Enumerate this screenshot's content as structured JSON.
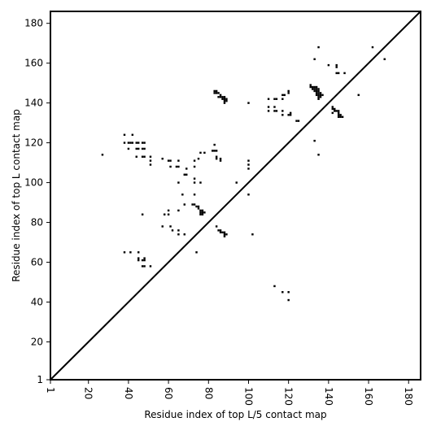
{
  "chart_data": {
    "type": "scatter",
    "title": "",
    "xlabel": "Residue index of top L/5 contact map",
    "ylabel": "Residue index of top L contact map",
    "xlim": [
      1,
      186
    ],
    "ylim": [
      1,
      186
    ],
    "xticks": [
      1,
      20,
      40,
      60,
      80,
      100,
      120,
      140,
      160,
      180
    ],
    "yticks": [
      1,
      20,
      40,
      60,
      80,
      100,
      120,
      140,
      160,
      180
    ],
    "xtick_labels": [
      "1",
      "20",
      "40",
      "60",
      "80",
      "100",
      "120",
      "140",
      "160",
      "180"
    ],
    "ytick_labels": [
      "1",
      "20",
      "40",
      "60",
      "80",
      "100",
      "120",
      "140",
      "160",
      "180"
    ],
    "x_tick_rotation": -90,
    "grid": false,
    "legend": "none",
    "diagonal": [
      [
        1,
        1
      ],
      [
        186,
        186
      ]
    ],
    "marker_color": "#000000",
    "series": [
      {
        "points": [
          [
            27,
            114
          ],
          [
            38,
            124
          ],
          [
            38,
            120
          ],
          [
            40,
            120
          ],
          [
            41,
            120
          ],
          [
            42,
            124
          ],
          [
            42,
            120
          ],
          [
            40,
            117
          ],
          [
            44,
            120
          ],
          [
            45,
            120
          ],
          [
            44,
            117
          ],
          [
            45,
            117
          ],
          [
            47,
            120
          ],
          [
            48,
            120
          ],
          [
            47,
            117
          ],
          [
            48,
            117
          ],
          [
            44,
            113
          ],
          [
            47,
            113
          ],
          [
            48,
            113
          ],
          [
            51,
            113
          ],
          [
            51,
            111
          ],
          [
            51,
            109
          ],
          [
            57,
            112
          ],
          [
            60,
            111
          ],
          [
            61,
            111
          ],
          [
            61,
            108
          ],
          [
            65,
            111
          ],
          [
            64,
            108
          ],
          [
            65,
            108
          ],
          [
            69,
            107
          ],
          [
            68,
            104
          ],
          [
            69,
            104
          ],
          [
            73,
            111
          ],
          [
            73,
            108
          ],
          [
            75,
            112
          ],
          [
            76,
            115
          ],
          [
            78,
            115
          ],
          [
            82,
            116
          ],
          [
            83,
            116
          ],
          [
            84,
            116
          ],
          [
            83,
            119
          ],
          [
            84,
            113
          ],
          [
            84,
            112
          ],
          [
            86,
            112
          ],
          [
            86,
            111
          ],
          [
            73,
            102
          ],
          [
            73,
            100
          ],
          [
            76,
            100
          ],
          [
            65,
            100
          ],
          [
            67,
            94
          ],
          [
            73,
            94
          ],
          [
            68,
            89
          ],
          [
            72,
            89
          ],
          [
            73,
            89
          ],
          [
            74,
            88
          ],
          [
            75,
            88
          ],
          [
            75,
            87
          ],
          [
            76,
            86
          ],
          [
            77,
            86
          ],
          [
            76,
            85
          ],
          [
            77,
            85
          ],
          [
            78,
            85
          ],
          [
            76,
            84
          ],
          [
            77,
            84
          ],
          [
            47,
            84
          ],
          [
            58,
            84
          ],
          [
            60,
            84
          ],
          [
            60,
            86
          ],
          [
            65,
            86
          ],
          [
            57,
            78
          ],
          [
            61,
            78
          ],
          [
            62,
            76
          ],
          [
            65,
            76
          ],
          [
            65,
            74
          ],
          [
            68,
            74
          ],
          [
            84,
            78
          ],
          [
            85,
            76
          ],
          [
            86,
            76
          ],
          [
            86,
            75
          ],
          [
            87,
            75
          ],
          [
            88,
            75
          ],
          [
            88,
            74
          ],
          [
            89,
            74
          ],
          [
            88,
            73
          ],
          [
            102,
            74
          ],
          [
            94,
            100
          ],
          [
            100,
            111
          ],
          [
            100,
            109
          ],
          [
            100,
            107
          ],
          [
            100,
            94
          ],
          [
            83,
            146
          ],
          [
            84,
            146
          ],
          [
            83,
            145
          ],
          [
            84,
            145
          ],
          [
            85,
            145
          ],
          [
            86,
            144
          ],
          [
            85,
            143
          ],
          [
            86,
            143
          ],
          [
            87,
            143
          ],
          [
            88,
            143
          ],
          [
            87,
            142
          ],
          [
            88,
            142
          ],
          [
            89,
            142
          ],
          [
            88,
            141
          ],
          [
            89,
            141
          ],
          [
            88,
            140
          ],
          [
            100,
            140
          ],
          [
            110,
            142
          ],
          [
            113,
            142
          ],
          [
            114,
            142
          ],
          [
            117,
            142
          ],
          [
            117,
            144
          ],
          [
            118,
            144
          ],
          [
            120,
            145
          ],
          [
            120,
            146
          ],
          [
            110,
            138
          ],
          [
            110,
            136
          ],
          [
            113,
            138
          ],
          [
            113,
            136
          ],
          [
            114,
            136
          ],
          [
            117,
            136
          ],
          [
            117,
            134
          ],
          [
            120,
            134
          ],
          [
            121,
            134
          ],
          [
            121,
            135
          ],
          [
            124,
            131
          ],
          [
            125,
            131
          ],
          [
            131,
            149
          ],
          [
            131,
            148
          ],
          [
            132,
            148
          ],
          [
            133,
            148
          ],
          [
            134,
            148
          ],
          [
            132,
            147
          ],
          [
            133,
            147
          ],
          [
            134,
            147
          ],
          [
            135,
            147
          ],
          [
            133,
            146
          ],
          [
            134,
            146
          ],
          [
            135,
            146
          ],
          [
            134,
            145
          ],
          [
            135,
            145
          ],
          [
            136,
            145
          ],
          [
            134,
            144
          ],
          [
            135,
            144
          ],
          [
            136,
            144
          ],
          [
            137,
            144
          ],
          [
            135,
            143
          ],
          [
            136,
            143
          ],
          [
            135,
            142
          ],
          [
            142,
            138
          ],
          [
            142,
            137
          ],
          [
            143,
            137
          ],
          [
            143,
            136
          ],
          [
            144,
            136
          ],
          [
            142,
            135
          ],
          [
            145,
            136
          ],
          [
            145,
            135
          ],
          [
            145,
            134
          ],
          [
            146,
            134
          ],
          [
            145,
            133
          ],
          [
            146,
            133
          ],
          [
            147,
            133
          ],
          [
            133,
            162
          ],
          [
            135,
            168
          ],
          [
            140,
            159
          ],
          [
            144,
            159
          ],
          [
            144,
            158
          ],
          [
            144,
            155
          ],
          [
            145,
            155
          ],
          [
            148,
            155
          ],
          [
            155,
            144
          ],
          [
            162,
            168
          ],
          [
            168,
            162
          ],
          [
            133,
            121
          ],
          [
            135,
            114
          ],
          [
            38,
            65
          ],
          [
            41,
            65
          ],
          [
            45,
            65
          ],
          [
            45,
            62
          ],
          [
            45,
            61
          ],
          [
            48,
            62
          ],
          [
            47,
            61
          ],
          [
            48,
            61
          ],
          [
            48,
            58
          ],
          [
            47,
            58
          ],
          [
            51,
            58
          ],
          [
            74,
            65
          ],
          [
            113,
            48
          ],
          [
            117,
            45
          ],
          [
            120,
            45
          ],
          [
            120,
            41
          ]
        ]
      }
    ]
  }
}
